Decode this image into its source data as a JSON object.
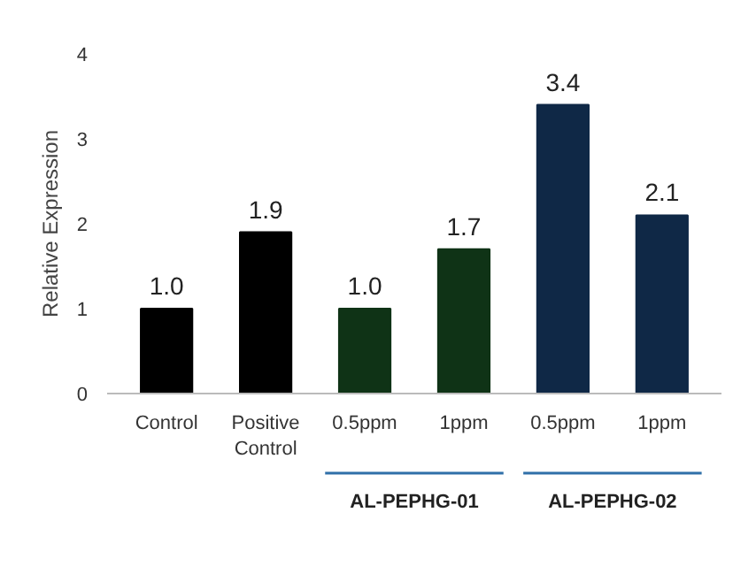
{
  "chart_data": {
    "type": "bar",
    "ylabel": "Relative Expression",
    "categories": [
      "Control",
      "Positive\nControl",
      "0.5ppm",
      "1ppm",
      "0.5ppm",
      "1ppm"
    ],
    "values": [
      1.0,
      1.9,
      1.0,
      1.7,
      3.4,
      2.1
    ],
    "value_labels": [
      "1.0",
      "1.9",
      "1.0",
      "1.7",
      "3.4",
      "2.1"
    ],
    "colors": [
      "#000000",
      "#000000",
      "#0f3316",
      "#0f3316",
      "#0f2846",
      "#0f2846"
    ],
    "ylim": [
      0,
      4
    ],
    "yticks": [
      0,
      1,
      2,
      3,
      4
    ],
    "grid": false,
    "legend": false,
    "annotations": [
      "AL-PEPHG-01",
      "AL-PEPHG-02"
    ]
  }
}
